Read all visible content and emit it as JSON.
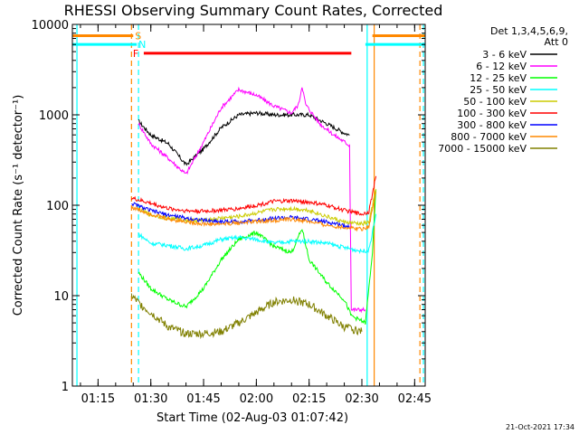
{
  "chart_data": {
    "type": "line",
    "title": "RHESSI Observing Summary Count Rates, Corrected",
    "ylabel": "Corrected Count Rate (s⁻¹ detector⁻¹)",
    "xlabel": "Start Time (02-Aug-03 01:07:42)",
    "xscale": "time",
    "yscale": "log",
    "xlim": [
      "01:07:42",
      "02:48:00"
    ],
    "ylim": [
      1,
      10000
    ],
    "x_ticks": [
      "01:15",
      "01:30",
      "01:45",
      "02:00",
      "02:15",
      "02:30",
      "02:45"
    ],
    "y_ticks": [
      "1",
      "10",
      "100",
      "1000",
      "10000"
    ],
    "legend_header": [
      "Det 1,3,4,5,6,9,",
      "Att 0"
    ],
    "footer_date": "21-Oct-2021 17:34",
    "series": [
      {
        "name": "3 - 6 keV",
        "color": "#000000",
        "points": [
          [
            "01:26:30",
            850
          ],
          [
            "01:30",
            600
          ],
          [
            "01:35",
            480
          ],
          [
            "01:40",
            280
          ],
          [
            "01:45",
            420
          ],
          [
            "01:50",
            720
          ],
          [
            "01:55",
            1000
          ],
          [
            "02:00",
            1050
          ],
          [
            "02:05",
            1000
          ],
          [
            "02:10",
            1000
          ],
          [
            "02:15",
            1000
          ],
          [
            "02:20",
            800
          ],
          [
            "02:25",
            630
          ],
          [
            "02:26:30",
            600
          ]
        ]
      },
      {
        "name": "6 - 12 keV",
        "color": "#ff00ff",
        "points": [
          [
            "01:26:30",
            800
          ],
          [
            "01:30",
            480
          ],
          [
            "01:35",
            330
          ],
          [
            "01:40",
            220
          ],
          [
            "01:45",
            500
          ],
          [
            "01:50",
            1200
          ],
          [
            "01:55",
            1900
          ],
          [
            "02:00",
            1650
          ],
          [
            "02:05",
            1250
          ],
          [
            "02:10",
            1050
          ],
          [
            "02:12",
            1300
          ],
          [
            "02:13",
            2100
          ],
          [
            "02:14",
            1300
          ],
          [
            "02:18",
            800
          ],
          [
            "02:22",
            600
          ],
          [
            "02:26:30",
            460
          ],
          [
            "02:27",
            7
          ],
          [
            "02:31",
            7
          ]
        ]
      },
      {
        "name": "12 - 25 keV",
        "color": "#00ff00",
        "points": [
          [
            "01:26:30",
            18
          ],
          [
            "01:30",
            12
          ],
          [
            "01:35",
            9
          ],
          [
            "01:40",
            7.5
          ],
          [
            "01:45",
            12
          ],
          [
            "01:50",
            25
          ],
          [
            "01:55",
            42
          ],
          [
            "02:00",
            50
          ],
          [
            "02:05",
            35
          ],
          [
            "02:10",
            30
          ],
          [
            "02:13",
            55
          ],
          [
            "02:15",
            25
          ],
          [
            "02:20",
            14
          ],
          [
            "02:25",
            9
          ],
          [
            "02:27",
            6
          ],
          [
            "02:31",
            5
          ],
          [
            "02:33",
            30
          ],
          [
            "02:34",
            150
          ]
        ]
      },
      {
        "name": "25 - 50 keV",
        "color": "#00ffff",
        "points": [
          [
            "01:26:30",
            48
          ],
          [
            "01:30",
            38
          ],
          [
            "01:35",
            36
          ],
          [
            "01:40",
            33
          ],
          [
            "01:45",
            36
          ],
          [
            "01:50",
            42
          ],
          [
            "01:55",
            44
          ],
          [
            "02:00",
            42
          ],
          [
            "02:05",
            38
          ],
          [
            "02:10",
            40
          ],
          [
            "02:15",
            40
          ],
          [
            "02:20",
            38
          ],
          [
            "02:25",
            34
          ],
          [
            "02:30",
            31
          ],
          [
            "02:32",
            32
          ],
          [
            "02:34",
            80
          ]
        ]
      },
      {
        "name": "50 - 100 keV",
        "color": "#cccc00",
        "points": [
          [
            "01:26:30",
            90
          ],
          [
            "01:30",
            78
          ],
          [
            "01:35",
            72
          ],
          [
            "01:40",
            68
          ],
          [
            "01:45",
            68
          ],
          [
            "01:50",
            72
          ],
          [
            "01:55",
            75
          ],
          [
            "02:00",
            82
          ],
          [
            "02:05",
            90
          ],
          [
            "02:10",
            92
          ],
          [
            "02:15",
            88
          ],
          [
            "02:20",
            75
          ],
          [
            "02:25",
            65
          ],
          [
            "02:30",
            62
          ],
          [
            "02:32",
            65
          ],
          [
            "02:34",
            150
          ]
        ]
      },
      {
        "name": "100 - 300 keV",
        "color": "#ff0000",
        "points": [
          [
            "01:24:30",
            120
          ],
          [
            "01:30",
            105
          ],
          [
            "01:35",
            92
          ],
          [
            "01:40",
            87
          ],
          [
            "01:45",
            86
          ],
          [
            "01:50",
            88
          ],
          [
            "01:55",
            92
          ],
          [
            "02:00",
            100
          ],
          [
            "02:05",
            110
          ],
          [
            "02:10",
            112
          ],
          [
            "02:15",
            108
          ],
          [
            "02:20",
            100
          ],
          [
            "02:25",
            88
          ],
          [
            "02:30",
            80
          ],
          [
            "02:32",
            85
          ],
          [
            "02:34",
            210
          ]
        ]
      },
      {
        "name": "300 - 800 keV",
        "color": "#0000ff",
        "points": [
          [
            "01:24:30",
            105
          ],
          [
            "01:30",
            87
          ],
          [
            "01:35",
            78
          ],
          [
            "01:40",
            72
          ],
          [
            "01:45",
            68
          ],
          [
            "01:50",
            66
          ],
          [
            "01:55",
            66
          ],
          [
            "02:00",
            68
          ],
          [
            "02:05",
            72
          ],
          [
            "02:10",
            73
          ],
          [
            "02:15",
            70
          ],
          [
            "02:20",
            65
          ],
          [
            "02:25",
            60
          ],
          [
            "02:26:30",
            58
          ]
        ]
      },
      {
        "name": "800 - 7000 keV",
        "color": "#ff8800",
        "points": [
          [
            "01:24:30",
            95
          ],
          [
            "01:30",
            80
          ],
          [
            "01:35",
            70
          ],
          [
            "01:40",
            66
          ],
          [
            "01:45",
            62
          ],
          [
            "01:50",
            62
          ],
          [
            "01:55",
            64
          ],
          [
            "02:00",
            66
          ],
          [
            "02:05",
            68
          ],
          [
            "02:10",
            70
          ],
          [
            "02:15",
            66
          ],
          [
            "02:20",
            60
          ],
          [
            "02:25",
            57
          ],
          [
            "02:30",
            55
          ],
          [
            "02:32",
            58
          ],
          [
            "02:34",
            140
          ]
        ]
      },
      {
        "name": "7000 - 15000 keV",
        "color": "#808000",
        "points": [
          [
            "01:24:30",
            10
          ],
          [
            "01:27",
            8
          ],
          [
            "01:30",
            6.5
          ],
          [
            "01:35",
            4.5
          ],
          [
            "01:40",
            3.8
          ],
          [
            "01:45",
            3.8
          ],
          [
            "01:50",
            4
          ],
          [
            "01:55",
            5
          ],
          [
            "02:00",
            6.5
          ],
          [
            "02:05",
            8.5
          ],
          [
            "02:10",
            9
          ],
          [
            "02:15",
            8
          ],
          [
            "02:20",
            6
          ],
          [
            "02:25",
            4.5
          ],
          [
            "02:30",
            4
          ]
        ]
      }
    ],
    "mode_lines": [
      {
        "label": "S",
        "color": "#ff8800",
        "y": 7500,
        "segments": [
          [
            "01:07:42",
            "01:25"
          ],
          [
            "02:33",
            "02:48:00"
          ]
        ]
      },
      {
        "label": "N",
        "color": "#00ffff",
        "y": 6000,
        "segments": [
          [
            "01:07:42",
            "01:26"
          ],
          [
            "02:31",
            "02:48:00"
          ]
        ]
      },
      {
        "label": "F",
        "color": "#ff0000",
        "y": 4800,
        "segments": [
          [
            "01:28",
            "02:27"
          ]
        ]
      }
    ],
    "vertical_markers": [
      {
        "x": "01:09",
        "color": "#00ffff",
        "style": "solid"
      },
      {
        "x": "01:24:30",
        "color": "#ff8800",
        "style": "dashed"
      },
      {
        "x": "01:26:30",
        "color": "#00ffff",
        "style": "dashed"
      },
      {
        "x": "02:31:30",
        "color": "#00ffff",
        "style": "solid"
      },
      {
        "x": "02:33:30",
        "color": "#ff8800",
        "style": "solid"
      },
      {
        "x": "02:46:30",
        "color": "#ff8800",
        "style": "dashed"
      },
      {
        "x": "02:47:30",
        "color": "#00ffff",
        "style": "dashed"
      }
    ]
  }
}
